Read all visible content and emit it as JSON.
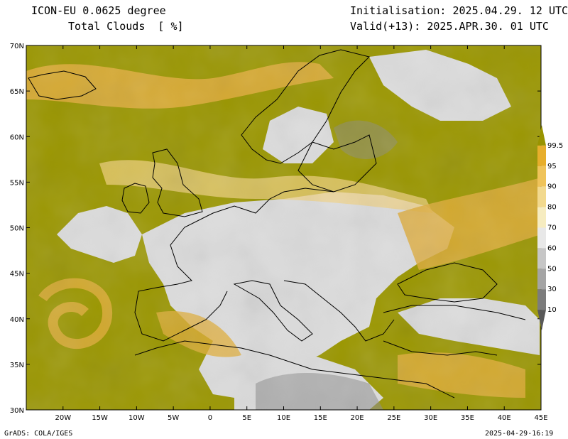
{
  "header": {
    "model": "ICON-EU 0.0625 degree",
    "variable": "Total Clouds  [ %]",
    "init": "Initialisation: 2025.04.29. 12 UTC",
    "valid": "Valid(+13): 2025.APR.30. 01 UTC"
  },
  "map": {
    "lat_labels": [
      "70N",
      "65N",
      "60N",
      "55N",
      "50N",
      "45N",
      "40N",
      "35N",
      "30N"
    ],
    "lon_labels": [
      "20W",
      "15W",
      "10W",
      "5W",
      "0",
      "5E",
      "10E",
      "15E",
      "20E",
      "25E",
      "30E",
      "35E",
      "40E",
      "45E"
    ],
    "lat_range": [
      30,
      70
    ],
    "lon_range": [
      -25,
      45
    ],
    "colors": {
      "land_clear": "#dcdcdc",
      "cloud_full": "#9a9600",
      "cloud_high": "#e0ad3a",
      "cloud_mid": "#f0d080",
      "gray_low": "#8c8c8c",
      "coast": "#000000"
    }
  },
  "colorbar": {
    "labels": [
      "99.5",
      "95",
      "90",
      "80",
      "70",
      "60",
      "50",
      "30",
      "10"
    ],
    "colors": [
      "#999400",
      "#e7ae2c",
      "#efc35a",
      "#f2d98e",
      "#f6ecc0",
      "#e8e8e8",
      "#c6c6c6",
      "#a4a4a4",
      "#7c7c7c",
      "#595959"
    ]
  },
  "footer": {
    "left": "GrADS: COLA/IGES",
    "right": "2025-04-29-16:19"
  }
}
